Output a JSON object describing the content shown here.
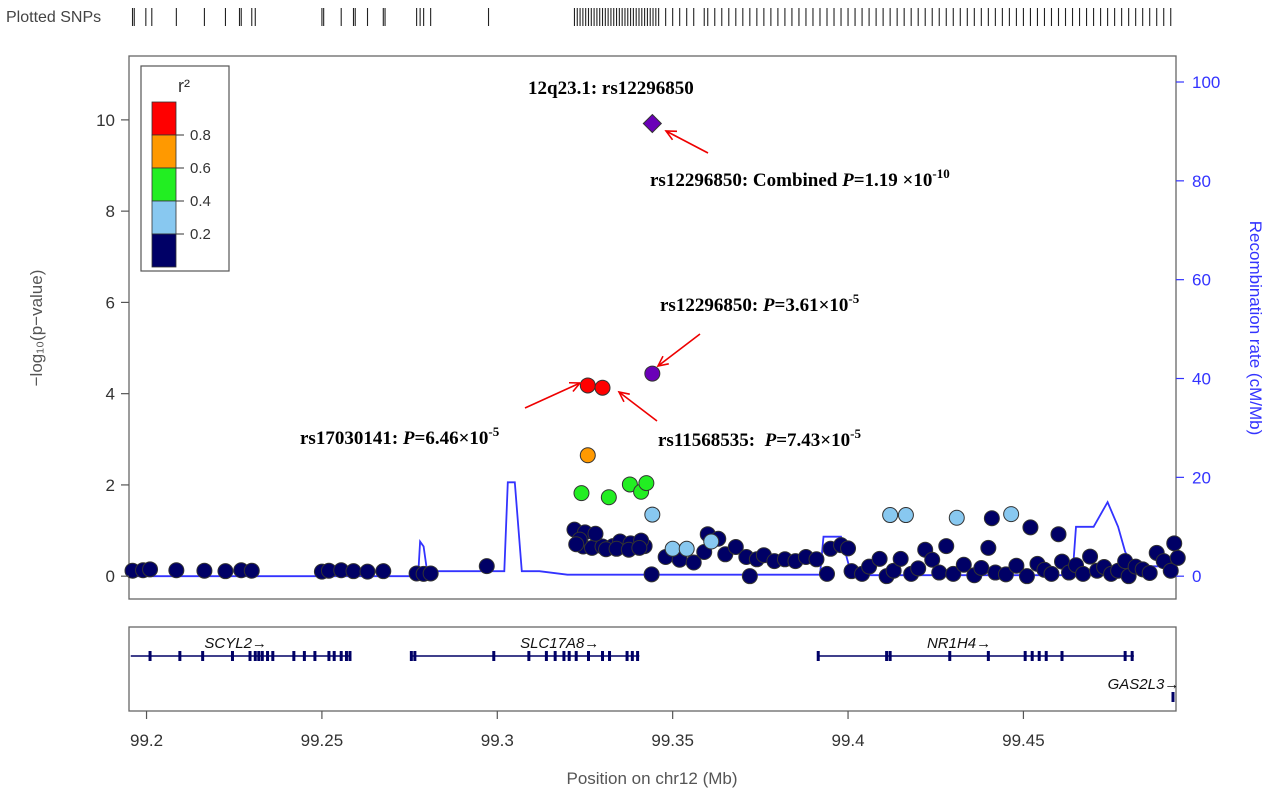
{
  "chart_data": {
    "type": "scatter",
    "top_strip_label": "Plotted SNPs",
    "xlabel": "Position on chr12 (Mb)",
    "ylabel_left": "−log₁₀(p−value)",
    "ylabel_right": "Recombination rate (cM/Mb)",
    "xlim": [
      99.195,
      99.4935
    ],
    "ylim_left": [
      -0.5,
      11.4
    ],
    "ylim_right": [
      0,
      104
    ],
    "x_ticks": [
      99.2,
      99.25,
      99.3,
      99.35,
      99.4,
      99.45
    ],
    "x_tick_labels": [
      "99.2",
      "99.25",
      "99.3",
      "99.35",
      "99.4",
      "99.45"
    ],
    "y_ticks_left": [
      0,
      2,
      4,
      6,
      8,
      10
    ],
    "y_tick_labels_left": [
      "0",
      "2",
      "4",
      "6",
      "8",
      "10"
    ],
    "y_ticks_right": [
      0,
      20,
      40,
      60,
      80,
      100
    ],
    "y_tick_labels_right": [
      "0",
      "20",
      "40",
      "60",
      "80",
      "100"
    ],
    "legend": {
      "title": "r²",
      "placement": "top-left",
      "bins": [
        {
          "color": "#ff0000",
          "label": "0.8"
        },
        {
          "color": "#ff9900",
          "label": "0.6"
        },
        {
          "color": "#22ee22",
          "label": "0.4"
        },
        {
          "color": "#88c8f0",
          "label": "0.2"
        },
        {
          "color": "#000066",
          "label": ""
        }
      ]
    },
    "colors": {
      "ld_08": "#ff0000",
      "ld_06": "#ff9900",
      "ld_04": "#22ee22",
      "ld_02": "#88c8f0",
      "ld_00": "#000066",
      "lead": "#6a00b8",
      "recomb": "#3333ff",
      "arrow": "#ee0000",
      "gene": "#000066"
    },
    "annotations": [
      {
        "id": "region",
        "text": "12q23.1: rs12296850"
      },
      {
        "id": "combined",
        "pre": "rs12296850: Combined ",
        "p": "P",
        "eq": "=1.19 ×10",
        "sup": "-10"
      },
      {
        "id": "lead_p",
        "pre": "rs12296850: ",
        "p": "P",
        "eq": "=3.61×10",
        "sup": "-5"
      },
      {
        "id": "rs17030141",
        "pre": "rs17030141: ",
        "p": "P",
        "eq": "=6.46×10",
        "sup": "-5"
      },
      {
        "id": "rs11568535",
        "pre": "rs11568535:  ",
        "p": "P",
        "eq": "=7.43×10",
        "sup": "-5"
      }
    ],
    "lead_snp": {
      "name": "rs12296850",
      "x": 99.3442,
      "y_discovery": 4.44,
      "y_combined": 9.92
    },
    "series": [
      {
        "name": "",
        "ld": "0.8",
        "points": [
          [
            99.3258,
            4.18
          ],
          [
            99.33,
            4.13
          ]
        ]
      },
      {
        "name": "",
        "ld": "0.6",
        "points": [
          [
            99.3258,
            2.65
          ]
        ]
      },
      {
        "name": "",
        "ld": "0.4",
        "points": [
          [
            99.324,
            1.82
          ],
          [
            99.3318,
            1.73
          ],
          [
            99.3378,
            2.01
          ],
          [
            99.341,
            1.85
          ],
          [
            99.3425,
            2.04
          ]
        ]
      },
      {
        "name": "",
        "ld": "0.2",
        "points": [
          [
            99.3442,
            1.35
          ],
          [
            99.35,
            0.6
          ],
          [
            99.354,
            0.6
          ],
          [
            99.361,
            0.76
          ],
          [
            99.412,
            1.34
          ],
          [
            99.4165,
            1.34
          ],
          [
            99.431,
            1.28
          ],
          [
            99.4465,
            1.36
          ]
        ]
      },
      {
        "name": "",
        "ld": "0.0",
        "points": [
          [
            99.196,
            0.12
          ],
          [
            99.199,
            0.13
          ],
          [
            99.201,
            0.15
          ],
          [
            99.2085,
            0.13
          ],
          [
            99.2165,
            0.12
          ],
          [
            99.2225,
            0.11
          ],
          [
            99.227,
            0.13
          ],
          [
            99.23,
            0.12
          ],
          [
            99.25,
            0.1
          ],
          [
            99.252,
            0.12
          ],
          [
            99.2555,
            0.13
          ],
          [
            99.259,
            0.11
          ],
          [
            99.263,
            0.1
          ],
          [
            99.2675,
            0.11
          ],
          [
            99.277,
            0.06
          ],
          [
            99.279,
            0.05
          ],
          [
            99.281,
            0.06
          ],
          [
            99.297,
            0.22
          ],
          [
            99.322,
            1.02
          ],
          [
            99.3245,
            0.65
          ],
          [
            99.327,
            0.62
          ],
          [
            99.33,
            0.65
          ],
          [
            99.333,
            0.66
          ],
          [
            99.336,
            0.7
          ],
          [
            99.339,
            0.68
          ],
          [
            99.342,
            0.66
          ],
          [
            99.325,
            0.96
          ],
          [
            99.328,
            0.93
          ],
          [
            99.3235,
            0.8
          ],
          [
            99.335,
            0.76
          ],
          [
            99.338,
            0.72
          ],
          [
            99.341,
            0.78
          ],
          [
            99.3225,
            0.7
          ],
          [
            99.331,
            0.59
          ],
          [
            99.334,
            0.6
          ],
          [
            99.3375,
            0.58
          ],
          [
            99.3405,
            0.62
          ],
          [
            99.344,
            0.04
          ],
          [
            99.348,
            0.42
          ],
          [
            99.352,
            0.36
          ],
          [
            99.356,
            0.3
          ],
          [
            99.359,
            0.53
          ],
          [
            99.36,
            0.92
          ],
          [
            99.363,
            0.82
          ],
          [
            99.365,
            0.48
          ],
          [
            99.368,
            0.64
          ],
          [
            99.371,
            0.42
          ],
          [
            99.374,
            0.37
          ],
          [
            99.372,
            0.0
          ],
          [
            99.376,
            0.46
          ],
          [
            99.379,
            0.33
          ],
          [
            99.382,
            0.37
          ],
          [
            99.385,
            0.33
          ],
          [
            99.388,
            0.42
          ],
          [
            99.391,
            0.37
          ],
          [
            99.394,
            0.05
          ],
          [
            99.395,
            0.6
          ],
          [
            99.398,
            0.68
          ],
          [
            99.4,
            0.61
          ],
          [
            99.401,
            0.11
          ],
          [
            99.404,
            0.05
          ],
          [
            99.406,
            0.21
          ],
          [
            99.409,
            0.38
          ],
          [
            99.411,
            0.0
          ],
          [
            99.413,
            0.12
          ],
          [
            99.415,
            0.38
          ],
          [
            99.418,
            0.05
          ],
          [
            99.42,
            0.17
          ],
          [
            99.422,
            0.58
          ],
          [
            99.424,
            0.36
          ],
          [
            99.426,
            0.08
          ],
          [
            99.428,
            0.66
          ],
          [
            99.43,
            0.05
          ],
          [
            99.433,
            0.25
          ],
          [
            99.436,
            0.02
          ],
          [
            99.438,
            0.18
          ],
          [
            99.44,
            0.62
          ],
          [
            99.441,
            1.27
          ],
          [
            99.442,
            0.08
          ],
          [
            99.445,
            0.04
          ],
          [
            99.448,
            0.23
          ],
          [
            99.451,
            0.0
          ],
          [
            99.452,
            1.07
          ],
          [
            99.454,
            0.27
          ],
          [
            99.456,
            0.14
          ],
          [
            99.458,
            0.05
          ],
          [
            99.46,
            0.92
          ],
          [
            99.461,
            0.32
          ],
          [
            99.463,
            0.08
          ],
          [
            99.465,
            0.24
          ],
          [
            99.467,
            0.05
          ],
          [
            99.469,
            0.43
          ],
          [
            99.471,
            0.12
          ],
          [
            99.473,
            0.2
          ],
          [
            99.475,
            0.05
          ],
          [
            99.477,
            0.12
          ],
          [
            99.479,
            0.33
          ],
          [
            99.48,
            0.0
          ],
          [
            99.482,
            0.21
          ],
          [
            99.484,
            0.15
          ],
          [
            99.486,
            0.07
          ],
          [
            99.488,
            0.51
          ],
          [
            99.49,
            0.33
          ],
          [
            99.492,
            0.12
          ],
          [
            99.493,
            0.72
          ],
          [
            99.494,
            0.4
          ]
        ]
      }
    ],
    "recombination": [
      [
        99.195,
        0.0
      ],
      [
        99.2765,
        0.0
      ],
      [
        99.2775,
        1.0
      ],
      [
        99.278,
        7.0
      ],
      [
        99.279,
        6.0
      ],
      [
        99.28,
        1.0
      ],
      [
        99.302,
        1.0
      ],
      [
        99.303,
        19.0
      ],
      [
        99.305,
        19.0
      ],
      [
        99.307,
        1.0
      ],
      [
        99.312,
        1.0
      ],
      [
        99.32,
        0.3
      ],
      [
        99.385,
        0.3
      ],
      [
        99.392,
        0.3
      ],
      [
        99.393,
        8.0
      ],
      [
        99.398,
        8.0
      ],
      [
        99.401,
        0.2
      ],
      [
        99.464,
        0.2
      ],
      [
        99.465,
        10.0
      ],
      [
        99.47,
        10.0
      ],
      [
        99.474,
        15.0
      ],
      [
        99.477,
        10.0
      ],
      [
        99.479,
        5.0
      ],
      [
        99.481,
        2.0
      ],
      [
        99.4935,
        2.0
      ]
    ],
    "plotted_snps": [
      99.196,
      99.1965,
      99.1998,
      99.2015,
      99.2085,
      99.2165,
      99.2225,
      99.2265,
      99.227,
      99.23,
      99.231,
      99.25,
      99.2505,
      99.2555,
      99.259,
      99.2595,
      99.263,
      99.2675,
      99.268,
      99.277,
      99.278,
      99.279,
      99.281,
      99.2975,
      99.322,
      99.3228,
      99.3236,
      99.3244,
      99.3252,
      99.326,
      99.3268,
      99.3276,
      99.3284,
      99.3292,
      99.33,
      99.3308,
      99.3316,
      99.3324,
      99.3332,
      99.334,
      99.3348,
      99.3356,
      99.3364,
      99.3372,
      99.338,
      99.3388,
      99.3396,
      99.3404,
      99.3412,
      99.342,
      99.3428,
      99.3436,
      99.3444,
      99.3452,
      99.346,
      99.348,
      99.35,
      99.352,
      99.354,
      99.356,
      99.359,
      99.36,
      99.362,
      99.364,
      99.366,
      99.368,
      99.37,
      99.372,
      99.374,
      99.376,
      99.378,
      99.38,
      99.382,
      99.384,
      99.386,
      99.388,
      99.39,
      99.392,
      99.394,
      99.396,
      99.398,
      99.4,
      99.402,
      99.404,
      99.406,
      99.408,
      99.41,
      99.412,
      99.414,
      99.416,
      99.418,
      99.42,
      99.422,
      99.424,
      99.426,
      99.428,
      99.43,
      99.432,
      99.434,
      99.436,
      99.438,
      99.44,
      99.442,
      99.444,
      99.446,
      99.448,
      99.45,
      99.452,
      99.454,
      99.456,
      99.458,
      99.46,
      99.462,
      99.464,
      99.466,
      99.468,
      99.47,
      99.472,
      99.474,
      99.476,
      99.478,
      99.48,
      99.482,
      99.484,
      99.486,
      99.488,
      99.49,
      99.492
    ],
    "genes": [
      {
        "name": "SCYL2→",
        "row": 0,
        "start": 99.1955,
        "end": 99.258,
        "label_x": 99.2165,
        "exons": [
          99.201,
          99.2095,
          99.216,
          99.2245,
          99.2295,
          99.231,
          99.232,
          99.233,
          99.2345,
          99.236,
          99.242,
          99.245,
          99.248,
          99.252,
          99.2535,
          99.2555,
          99.257,
          99.258
        ]
      },
      {
        "name": "SLC17A8→",
        "row": 0,
        "start": 99.2755,
        "end": 99.3405,
        "label_x": 99.3065,
        "exons": [
          99.2755,
          99.2765,
          99.299,
          99.309,
          99.314,
          99.3165,
          99.319,
          99.3205,
          99.3225,
          99.326,
          99.33,
          99.332,
          99.337,
          99.3385,
          99.34
        ]
      },
      {
        "name": "NR1H4→",
        "row": 0,
        "start": 99.3915,
        "end": 99.4815,
        "label_x": 99.4225,
        "exons": [
          99.3915,
          99.411,
          99.412,
          99.429,
          99.44,
          99.4505,
          99.4525,
          99.4545,
          99.4565,
          99.461,
          99.479,
          99.481
        ]
      },
      {
        "name": "GAS2L3→",
        "row": 1,
        "start": 99.493,
        "end": 99.495,
        "label_x": 99.474,
        "exons": [
          99.4935
        ]
      }
    ]
  }
}
